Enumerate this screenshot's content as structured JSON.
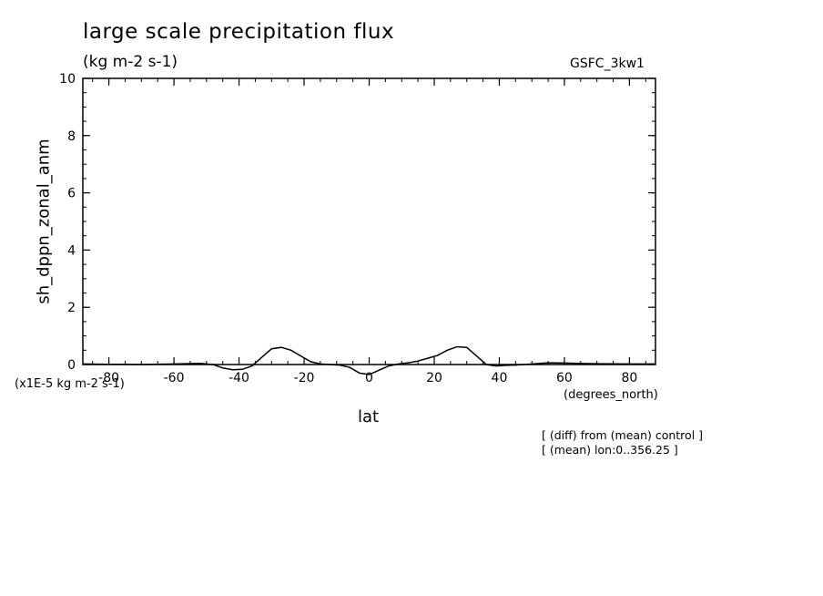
{
  "chart_data": {
    "type": "line",
    "title": "large scale precipitation flux",
    "subtitle": "(kg m-2 s-1)",
    "model_label": "GSFC_3kw1",
    "xlabel": "lat",
    "xunits": "(degrees_north)",
    "ylabel": "sh_dppn_zonal_anm",
    "y_multiplier_label": "(x1E-5 kg m-2 s-1)",
    "notes": [
      "[ (diff) from (mean) control ]",
      "[ (mean) lon:0..356.25 ]"
    ],
    "xlim": [
      -88,
      88
    ],
    "ylim": [
      0,
      10
    ],
    "x_ticks": [
      -80,
      -60,
      -40,
      -20,
      0,
      20,
      40,
      60,
      80
    ],
    "x_tick_labels": [
      "-80",
      "-60",
      "-40",
      "-20",
      "0",
      "20",
      "40",
      "60",
      "80"
    ],
    "y_ticks": [
      0,
      2,
      4,
      6,
      8,
      10
    ],
    "y_tick_labels": [
      "0",
      "2",
      "4",
      "6",
      "8",
      "10"
    ],
    "grid": false,
    "series": [
      {
        "x": [
          -88,
          -80,
          -70,
          -60,
          -52,
          -48,
          -45,
          -42,
          -39,
          -36,
          -33,
          -30,
          -27,
          -24,
          -21,
          -18,
          -15,
          -12,
          -9,
          -6,
          -3,
          0,
          3,
          6,
          9,
          12,
          15,
          18,
          21,
          24,
          27,
          30,
          33,
          36,
          39,
          42,
          45,
          50,
          55,
          60,
          70,
          80,
          88
        ],
        "y": [
          0.02,
          0.01,
          0.0,
          0.02,
          0.04,
          0.0,
          -0.12,
          -0.18,
          -0.17,
          -0.05,
          0.25,
          0.55,
          0.6,
          0.5,
          0.3,
          0.1,
          0.02,
          0.0,
          -0.02,
          -0.1,
          -0.3,
          -0.35,
          -0.2,
          -0.05,
          0.02,
          0.06,
          0.12,
          0.22,
          0.32,
          0.5,
          0.62,
          0.6,
          0.3,
          0.0,
          -0.05,
          -0.03,
          -0.02,
          0.02,
          0.06,
          0.05,
          0.03,
          0.02,
          0.02
        ]
      }
    ]
  }
}
